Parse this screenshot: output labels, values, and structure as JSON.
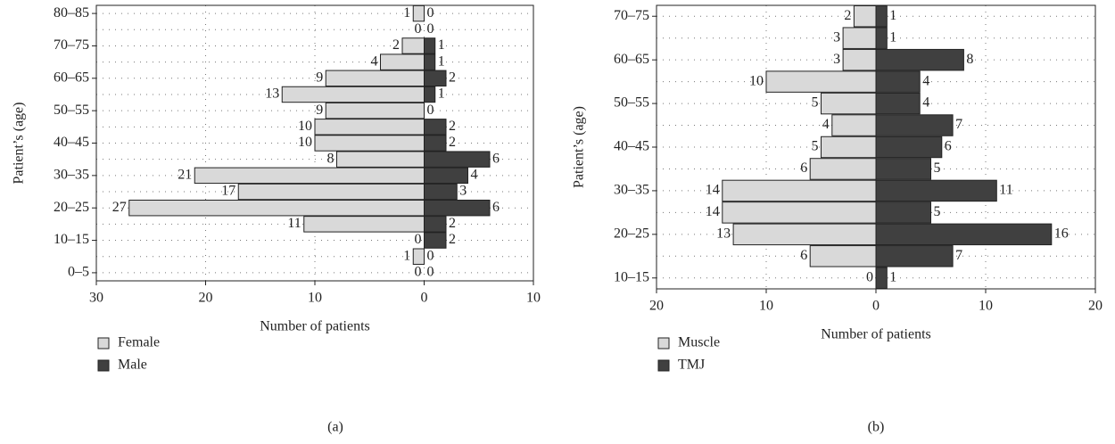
{
  "chart_data": [
    {
      "type": "pyramid",
      "caption": "(a)",
      "x_label": "Number of patients",
      "y_label": "Patient’s (age)",
      "categories": [
        "0–5",
        null,
        "10–15",
        null,
        "20–25",
        null,
        "30–35",
        null,
        "40–45",
        null,
        "50–55",
        null,
        "60–65",
        null,
        "70–75",
        null,
        "80–85"
      ],
      "series": [
        {
          "name": "Female",
          "color": "#d9d9d9",
          "values": [
            0,
            1,
            0,
            11,
            27,
            17,
            21,
            8,
            10,
            10,
            9,
            13,
            9,
            4,
            2,
            0,
            1
          ]
        },
        {
          "name": "Male",
          "color": "#404040",
          "values": [
            0,
            0,
            2,
            2,
            6,
            3,
            4,
            6,
            2,
            2,
            0,
            1,
            2,
            1,
            1,
            0,
            0
          ]
        }
      ],
      "xlim": [
        -30,
        10
      ],
      "xticks": [
        {
          "value": -30,
          "label": "30"
        },
        {
          "value": -20,
          "label": "20"
        },
        {
          "value": -10,
          "label": "10"
        },
        0,
        10
      ],
      "grid": true
    },
    {
      "type": "pyramid",
      "caption": "(b)",
      "x_label": "Number of patients",
      "y_label": "Patient’s (age)",
      "categories": [
        "10–15",
        null,
        "20–25",
        null,
        "30–35",
        null,
        "40–45",
        null,
        "50–55",
        null,
        "60–65",
        null,
        "70–75"
      ],
      "series": [
        {
          "name": "Muscle",
          "color": "#d9d9d9",
          "values": [
            0,
            6,
            13,
            14,
            14,
            6,
            5,
            4,
            5,
            10,
            3,
            3,
            2
          ]
        },
        {
          "name": "TMJ",
          "color": "#404040",
          "values": [
            1,
            7,
            16,
            5,
            11,
            5,
            6,
            7,
            4,
            4,
            8,
            1,
            1
          ]
        }
      ],
      "xlim": [
        -20,
        20
      ],
      "xticks": [
        {
          "value": -20,
          "label": "20"
        },
        {
          "value": -10,
          "label": "10"
        },
        0,
        10,
        20
      ],
      "grid": true
    }
  ]
}
